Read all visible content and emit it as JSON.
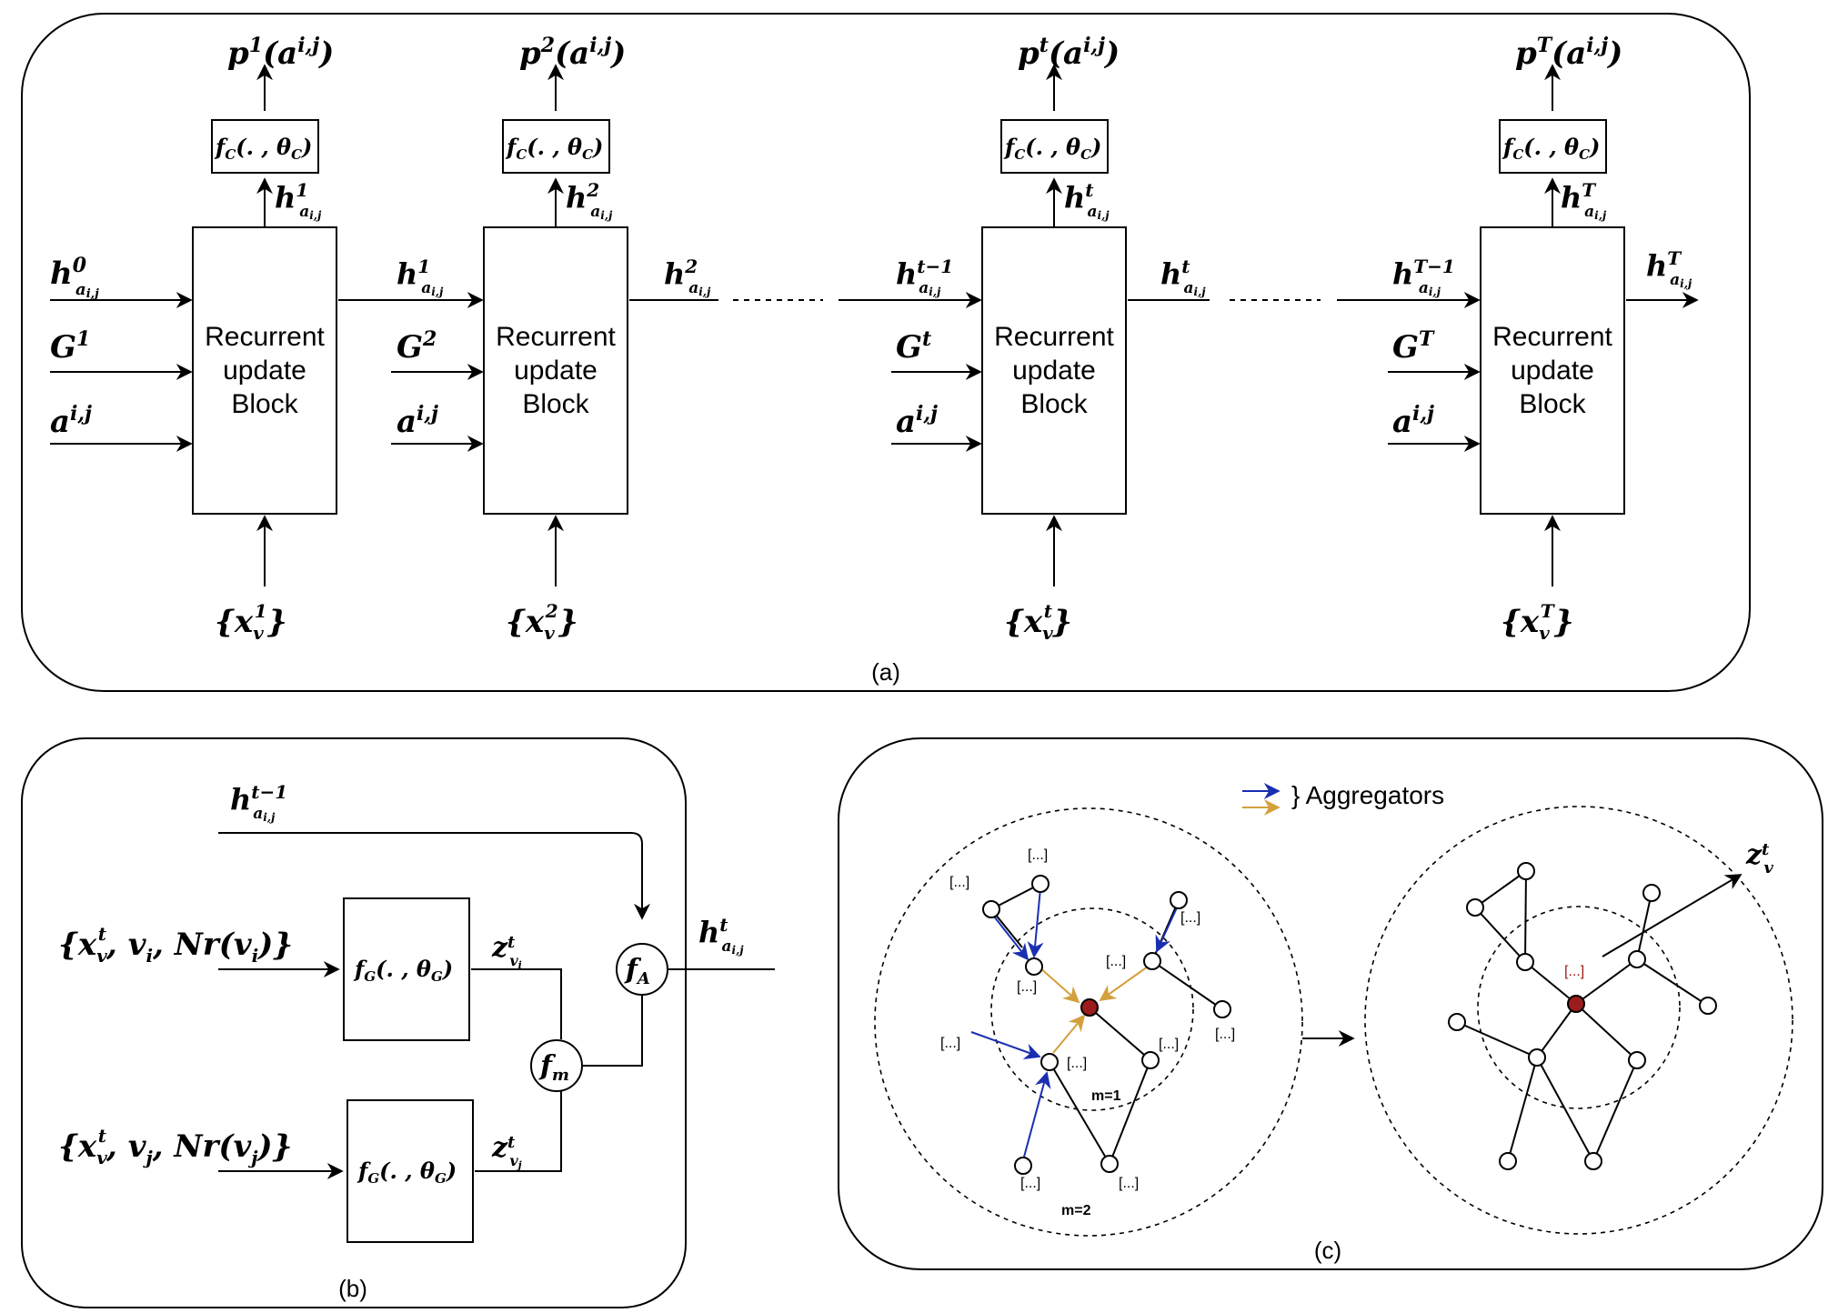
{
  "panel_a": {
    "caption": "(a)",
    "block_label_lines": [
      "Recurrent",
      "update",
      "Block"
    ],
    "classifier": "f_C(., θ_C)",
    "dots": "..........",
    "steps": [
      {
        "output": "p¹(aⁱʲ)",
        "hidden_up": "h¹",
        "in_h": "h⁰",
        "in_g": "G¹",
        "in_a": "aⁱʲ",
        "features": "{x_v¹}",
        "out_h": "h¹"
      },
      {
        "output": "p²(aⁱʲ)",
        "hidden_up": "h²",
        "in_h": "h¹",
        "in_g": "G²",
        "in_a": "aⁱʲ",
        "features": "{x_v²}",
        "out_h": "h²"
      },
      {
        "output": "pᵗ(aⁱʲ)",
        "hidden_up": "hᵗ",
        "in_h": "hᵗ⁻¹",
        "in_g": "Gᵗ",
        "in_a": "aⁱʲ",
        "features": "{x_vᵗ}",
        "out_h": "hᵗ"
      },
      {
        "output": "pᵀ(aⁱʲ)",
        "hidden_up": "hᵀ",
        "in_h": "hᵀ⁻¹",
        "in_g": "Gᵀ",
        "in_a": "aⁱʲ",
        "features": "{x_vᵀ}",
        "out_h": "hᵀ"
      }
    ],
    "hidden_subscript": "aⁱʲ"
  },
  "panel_b": {
    "caption": "(b)",
    "prev_hidden": "hᵗ⁻¹",
    "input_i": "{x_vᵗ, v_i, Nr(v_i)}",
    "input_j": "{x_vᵗ, v_j, Nr(v_j)}",
    "fg_label": "f_G(., θ_G)",
    "z_i": "z_{v_i}ᵗ",
    "z_j": "z_{v_j}ᵗ",
    "fm": "f_m",
    "fa": "f_A",
    "out_hidden": "hᵗ"
  },
  "panel_c": {
    "caption": "(c)",
    "legend": "} Aggregators",
    "ellipsis": "[...]",
    "m1": "m=1",
    "m2": "m=2",
    "output": "z_vᵗ"
  },
  "colors": {
    "blue_arrow": "#1a2fb0",
    "orange_arrow": "#d4a03c",
    "center_node": "#9b1c1c"
  }
}
